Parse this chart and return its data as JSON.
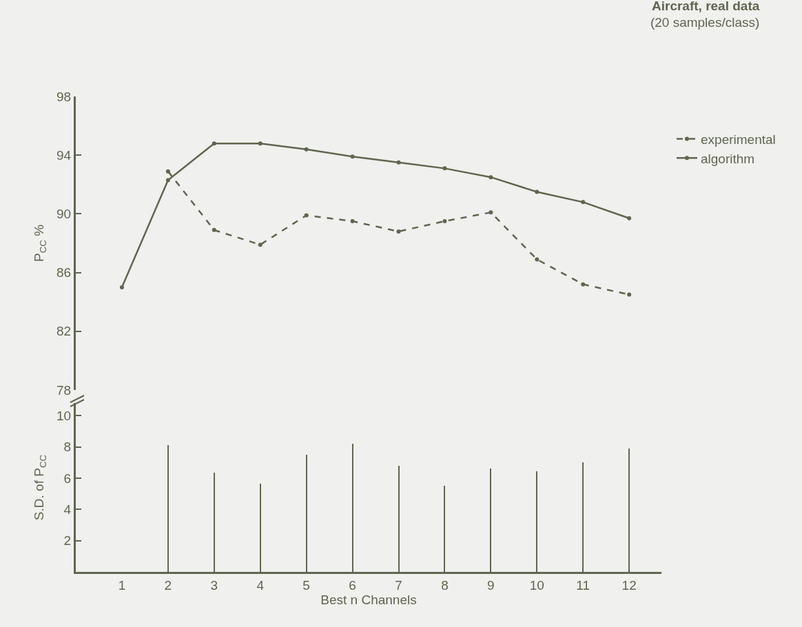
{
  "chart_data": [
    {
      "type": "line",
      "title": "Aircraft, real data",
      "subtitle": "(20 samples/class)",
      "ylabel": "P$_{CC}$ %",
      "x": [
        1,
        2,
        3,
        4,
        5,
        6,
        7,
        8,
        9,
        10,
        11,
        12
      ],
      "ylim": [
        78,
        98
      ],
      "yticks": [
        78,
        82,
        86,
        90,
        94,
        98
      ],
      "tick_labels": "y",
      "grid": false,
      "legend": "top right",
      "marker": "circle",
      "series": [
        {
          "name": "experimental",
          "color": "#5f6650",
          "line_style": "dashed",
          "values": [
            null,
            92.9,
            88.9,
            87.9,
            89.9,
            89.5,
            88.8,
            89.5,
            90.1,
            86.9,
            85.2,
            84.5
          ]
        },
        {
          "name": "algorithm",
          "color": "#5f6650",
          "line_style": "solid",
          "values": [
            85.0,
            92.3,
            94.8,
            94.8,
            94.4,
            93.9,
            93.5,
            93.1,
            92.5,
            91.5,
            90.8,
            89.7
          ]
        }
      ]
    },
    {
      "type": "bar",
      "xlabel": "Best n Channels",
      "ylabel": "S.D. of P$_{CC}$",
      "x": [
        2,
        3,
        4,
        5,
        6,
        7,
        8,
        9,
        10,
        11,
        12
      ],
      "xlim": [
        0,
        12.7
      ],
      "xticks": [
        1,
        2,
        3,
        4,
        5,
        6,
        7,
        8,
        9,
        10,
        11,
        12
      ],
      "ylim": [
        0,
        10.8
      ],
      "yticks": [
        2,
        4,
        6,
        8,
        10
      ],
      "grid": false,
      "legend": false,
      "series": [
        {
          "color": "#5f6650",
          "values": [
            8.1,
            6.35,
            5.65,
            7.5,
            8.2,
            6.8,
            5.5,
            6.6,
            6.45,
            7.0,
            7.9
          ]
        }
      ]
    }
  ]
}
